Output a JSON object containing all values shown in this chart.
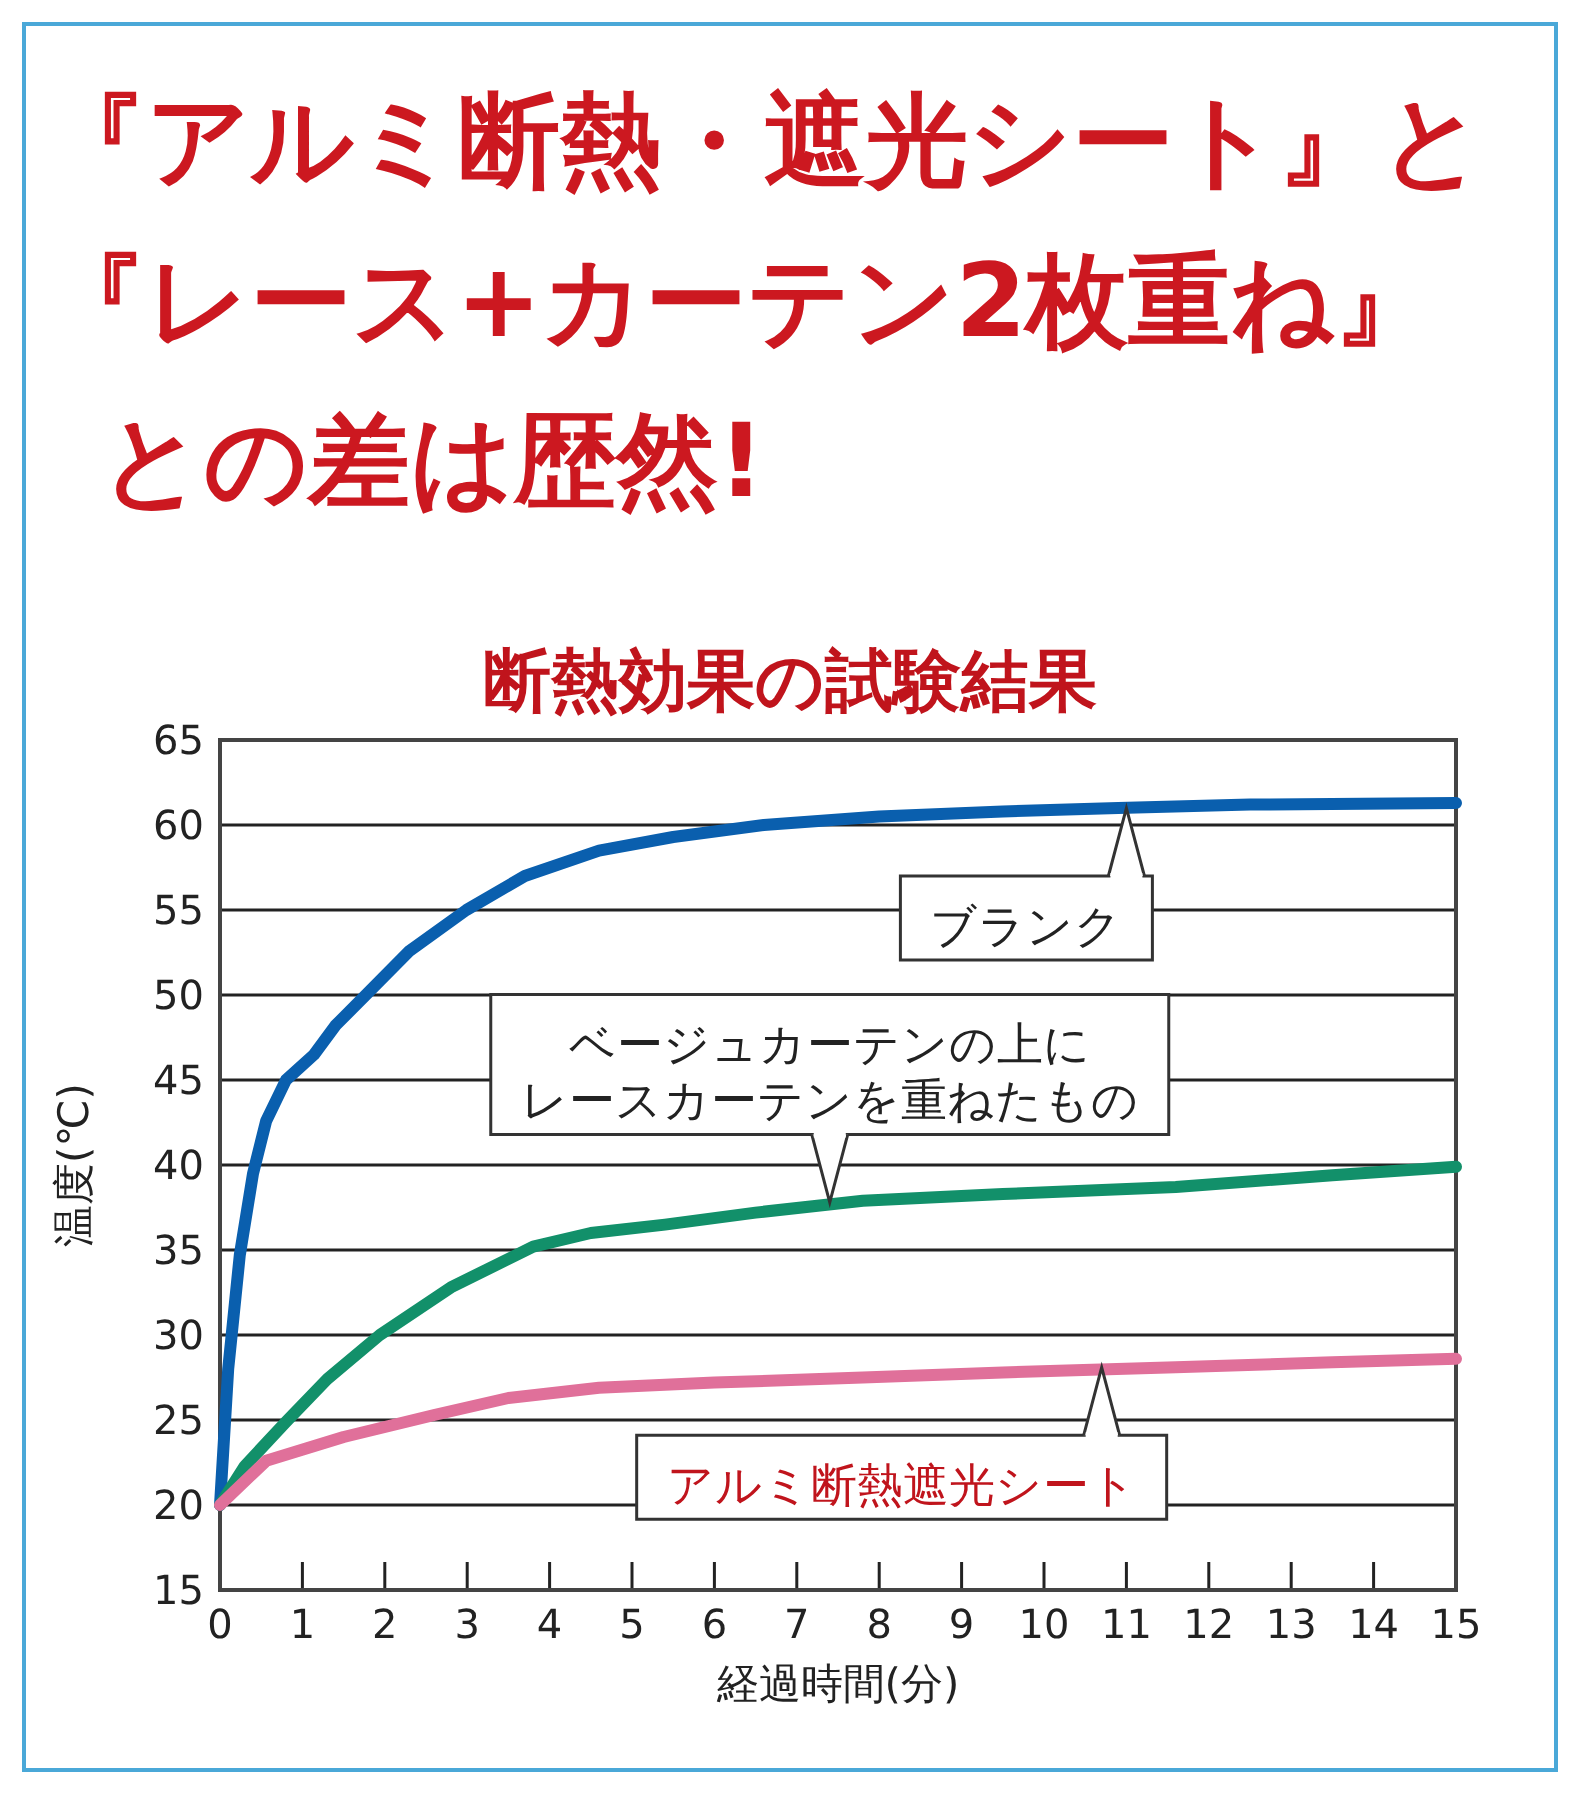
{
  "chart_data": {
    "type": "line",
    "title": "『アルミ断熱・遮光シート』と『レース+カーテン2枚重ね』との差は歴然!",
    "subtitle": "断熱効果の試験結果",
    "xlabel": "経過時間(分)",
    "ylabel": "温度(℃)",
    "series": [
      {
        "color": "#0a5fae",
        "x": [
          0,
          0.1,
          0.24,
          0.4,
          0.56,
          0.8,
          1.14,
          1.4,
          1.77,
          2.3,
          2.99,
          3.7,
          4.6,
          5.5,
          6.6,
          8,
          9.5,
          10.9,
          12.5,
          15
        ],
        "values": [
          20,
          28,
          34.7,
          39.5,
          42.6,
          45,
          46.5,
          48.2,
          50,
          52.6,
          55,
          57,
          58.5,
          59.3,
          60,
          60.5,
          60.8,
          61,
          61.2,
          61.3
        ]
      },
      {
        "color": "#12906a",
        "x": [
          0,
          0.3,
          0.8,
          1.3,
          1.94,
          2.8,
          3.8,
          4.5,
          5.4,
          6.5,
          7.8,
          9.5,
          11.6,
          13.5,
          15
        ],
        "values": [
          20,
          22.3,
          24.9,
          27.4,
          30,
          32.8,
          35.2,
          36,
          36.5,
          37.2,
          37.9,
          38.3,
          38.7,
          39.4,
          39.9
        ]
      },
      {
        "color": "#e0709a",
        "x": [
          0,
          0.56,
          1.5,
          2.6,
          3.5,
          4.6,
          6,
          7.8,
          9.5,
          11.6,
          13.5,
          15
        ],
        "values": [
          20,
          22.6,
          24,
          25.3,
          26.3,
          26.9,
          27.2,
          27.5,
          27.8,
          28.1,
          28.4,
          28.6
        ]
      }
    ],
    "annotations": [
      {
        "text": "ブランク",
        "x": 11,
        "y": 61
      },
      {
        "text": "ベージュカーテンの上に",
        "x": 7.4,
        "y": 37.8
      },
      "レースカーテンを重ねたもの",
      {
        "text": "アルミ断熱遮光シート",
        "x": 10.7,
        "y": 28.1
      }
    ],
    "xlim": [
      0,
      15
    ],
    "xticks": [
      0,
      1,
      2,
      3,
      4,
      5,
      6,
      7,
      8,
      9,
      10,
      11,
      12,
      13,
      14,
      15
    ],
    "ylim": [
      15,
      65
    ],
    "yticks": [
      15,
      20,
      25,
      30,
      35,
      40,
      45,
      50,
      55,
      60,
      65
    ],
    "grid": "y",
    "line_style": "solid"
  }
}
